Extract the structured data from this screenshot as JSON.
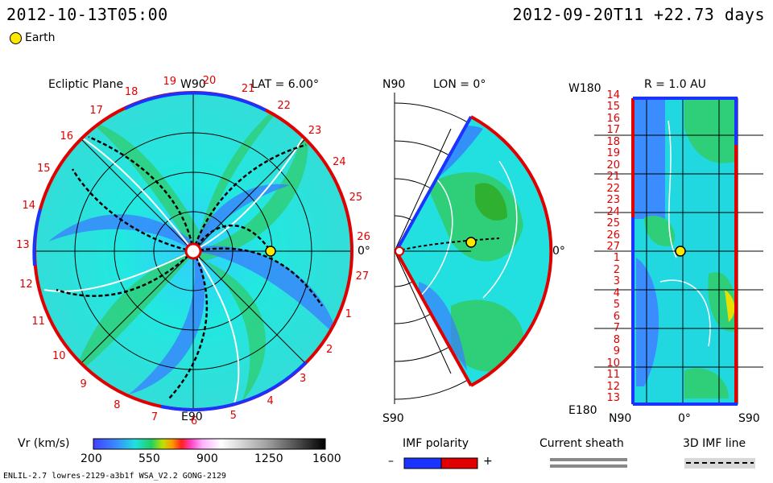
{
  "header": {
    "left_time": "2012-10-13T05:00",
    "right_time": "2012-09-20T11 +22.73 days"
  },
  "legend": {
    "earth_label": "Earth"
  },
  "panels": {
    "ecliptic": {
      "title": "Ecliptic Plane",
      "lat_label": "LAT = 6.00°",
      "top_label": "W90",
      "bottom_label": "E90",
      "right_label": "0°",
      "rotation_labels": [
        "19",
        "20",
        "21",
        "22",
        "23",
        "24",
        "25",
        "26",
        "27",
        "1",
        "2",
        "3",
        "4",
        "5",
        "6",
        "7",
        "8",
        "9",
        "10",
        "11",
        "12",
        "13",
        "14",
        "15",
        "16",
        "17",
        "18"
      ]
    },
    "meridional": {
      "title": "LON = 0°",
      "top_label": "N90",
      "bottom_label": "S90",
      "right_label": "0°"
    },
    "radial": {
      "title": "R = 1.0 AU",
      "top_left_label": "W180",
      "bottom_left_label": "E180",
      "x_labels": [
        "N90",
        "0°",
        "S90"
      ],
      "y_labels": [
        "14",
        "15",
        "16",
        "17",
        "18",
        "19",
        "20",
        "21",
        "22",
        "23",
        "24",
        "25",
        "26",
        "27",
        "1",
        "2",
        "3",
        "4",
        "5",
        "6",
        "7",
        "8",
        "9",
        "10",
        "11",
        "12",
        "13"
      ]
    }
  },
  "colorbar": {
    "label": "Vr (km/s)",
    "ticks": [
      "200",
      "550",
      "900",
      "1250",
      "1600"
    ]
  },
  "imf_polarity": {
    "title": "IMF polarity",
    "minus": "–",
    "plus": "+"
  },
  "current_sheath": {
    "title": "Current sheath"
  },
  "imf_line": {
    "title": "3D IMF line"
  },
  "footer": {
    "model": "ENLIL-2.7 lowres-2129-a3b1f WSA_V2.2 GONG-2129"
  },
  "colors": {
    "accent_red": "#e00000",
    "accent_blue": "#1a33ff",
    "earth_fill": "#ffe800"
  }
}
